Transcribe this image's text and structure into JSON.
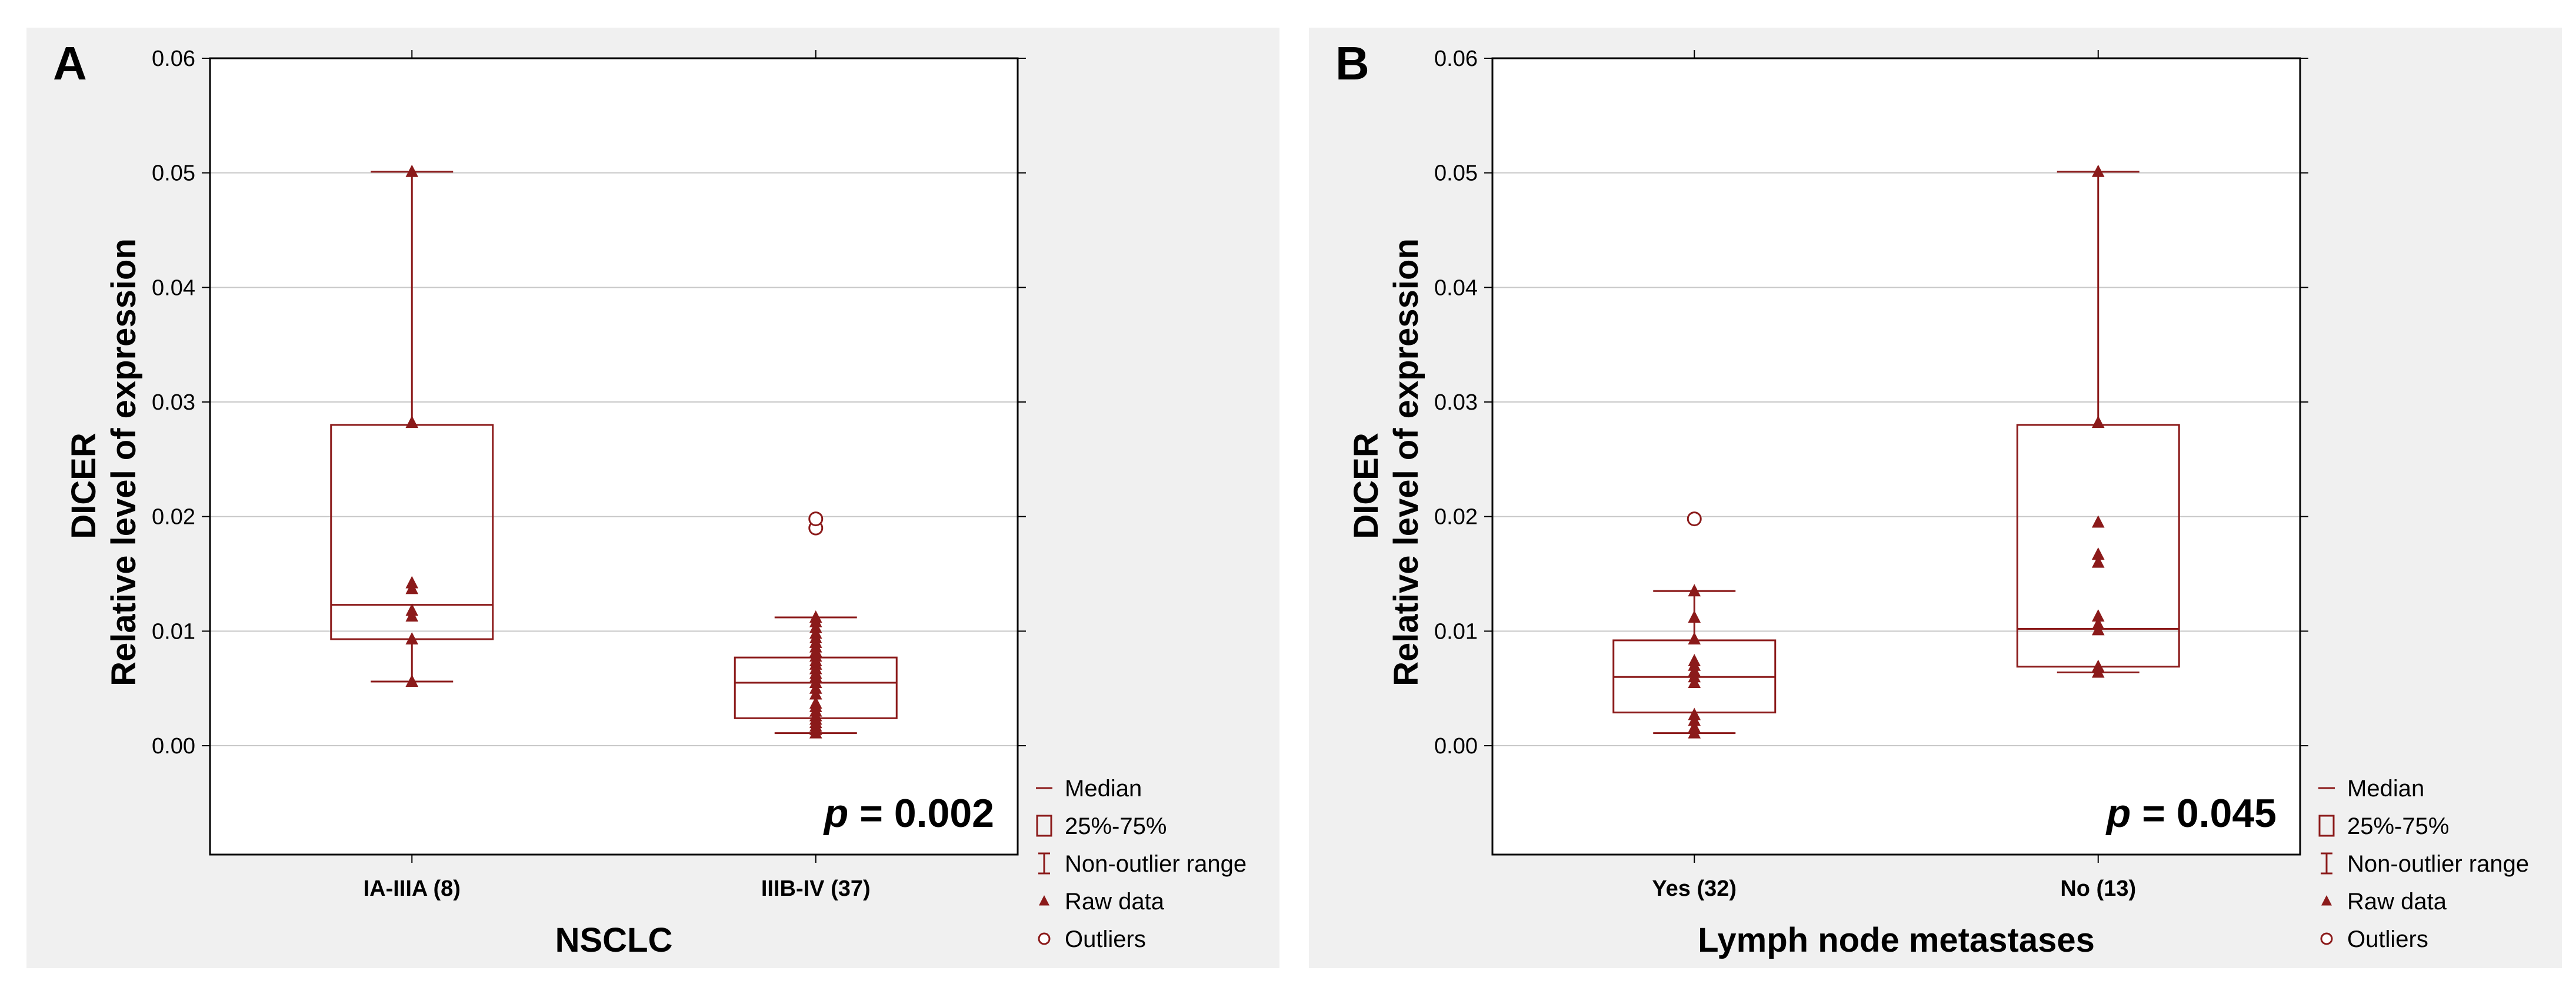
{
  "colors": {
    "box": "#8b1a1a",
    "grid": "#c8c8c8",
    "panel_bg": "#f0f0f0",
    "plot_bg": "#ffffff"
  },
  "legend": {
    "items": [
      {
        "symbol": "median",
        "label": "Median"
      },
      {
        "symbol": "box",
        "label": "25%-75%"
      },
      {
        "symbol": "range",
        "label": "Non-outlier range"
      },
      {
        "symbol": "triangle",
        "label": "Raw data"
      },
      {
        "symbol": "circle",
        "label": "Outliers"
      }
    ]
  },
  "chart_data": [
    {
      "type": "box",
      "panel_label": "A",
      "title": "",
      "xlabel": "NSCLC",
      "ylabel_line1": "DICER",
      "ylabel_line2": "Relative level of expression",
      "ylim": [
        -0.0095,
        0.06
      ],
      "yticks": [
        0.0,
        0.01,
        0.02,
        0.03,
        0.04,
        0.05,
        0.06
      ],
      "yticklabels": [
        "0.00",
        "0.01",
        "0.02",
        "0.03",
        "0.04",
        "0.05",
        "0.06"
      ],
      "grid": true,
      "annotation": {
        "p_label": "p",
        "p_value": " = 0.002"
      },
      "categories": [
        "IA-IIIA (8)",
        "IIIB-IV (37)"
      ],
      "boxes": [
        {
          "median": 0.0123,
          "q1": 0.0093,
          "q3": 0.028,
          "whisker_low": 0.0056,
          "whisker_high": 0.0501,
          "raw": [
            0.0056,
            0.0093,
            0.0113,
            0.0118,
            0.0137,
            0.0142,
            0.0282,
            0.0501
          ],
          "outliers": []
        },
        {
          "median": 0.0055,
          "q1": 0.0024,
          "q3": 0.0077,
          "whisker_low": 0.0011,
          "whisker_high": 0.0112,
          "raw": [
            0.0011,
            0.0014,
            0.0017,
            0.002,
            0.0023,
            0.0026,
            0.003,
            0.0034,
            0.0037,
            0.0045,
            0.005,
            0.0055,
            0.006,
            0.0063,
            0.0067,
            0.0071,
            0.0074,
            0.0078,
            0.0082,
            0.0086,
            0.009,
            0.0094,
            0.0098,
            0.0103,
            0.0108,
            0.0112
          ],
          "outliers": [
            0.019,
            0.0198
          ]
        }
      ]
    },
    {
      "type": "box",
      "panel_label": "B",
      "title": "",
      "xlabel": "Lymph node metastases",
      "ylabel_line1": "DICER",
      "ylabel_line2": "Relative level of expression",
      "ylim": [
        -0.0095,
        0.06
      ],
      "yticks": [
        0.0,
        0.01,
        0.02,
        0.03,
        0.04,
        0.05,
        0.06
      ],
      "yticklabels": [
        "0.00",
        "0.01",
        "0.02",
        "0.03",
        "0.04",
        "0.05",
        "0.06"
      ],
      "grid": true,
      "annotation": {
        "p_label": "p",
        "p_value": " = 0.045"
      },
      "categories": [
        "Yes (32)",
        "No (13)"
      ],
      "boxes": [
        {
          "median": 0.006,
          "q1": 0.0029,
          "q3": 0.0092,
          "whisker_low": 0.0011,
          "whisker_high": 0.0135,
          "raw": [
            0.0011,
            0.0016,
            0.0022,
            0.0027,
            0.0055,
            0.006,
            0.0065,
            0.007,
            0.0074,
            0.0093,
            0.0112,
            0.0135
          ],
          "outliers": [
            0.0198
          ]
        },
        {
          "median": 0.0102,
          "q1": 0.0069,
          "q3": 0.028,
          "whisker_low": 0.0064,
          "whisker_high": 0.0501,
          "raw": [
            0.0064,
            0.0069,
            0.0101,
            0.0106,
            0.0113,
            0.016,
            0.0167,
            0.0195,
            0.0282,
            0.0501
          ],
          "outliers": []
        }
      ]
    }
  ]
}
